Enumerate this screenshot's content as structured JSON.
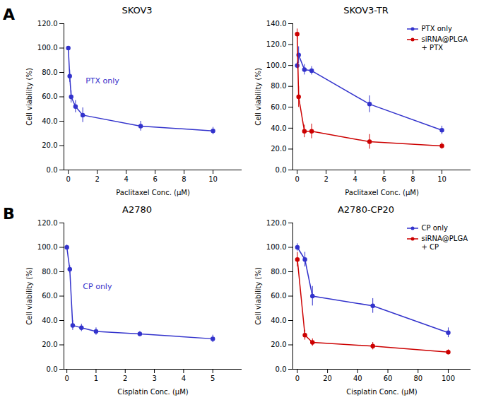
{
  "chart_data": [
    {
      "type": "line",
      "panel_label": "A",
      "title": "SKOV3",
      "xlabel": "Paclitaxel Conc. (μM)",
      "ylabel": "Cell viability (%)",
      "xlim": [
        -0.3,
        12
      ],
      "ylim": [
        0.0,
        120.0
      ],
      "xticks": [
        0,
        2,
        4,
        6,
        8,
        10
      ],
      "yticks": [
        {
          "value": 0,
          "label": "0.0"
        },
        {
          "value": 20,
          "label": "20.0"
        },
        {
          "value": 40,
          "label": "40.0"
        },
        {
          "value": 60,
          "label": "60.0"
        },
        {
          "value": 80,
          "label": "80.0"
        },
        {
          "value": 100,
          "label": "100.0"
        },
        {
          "value": 120,
          "label": "120.0"
        }
      ],
      "grid": false,
      "marker": "circle",
      "x": [
        0,
        0.1,
        0.2,
        0.5,
        1.0,
        5.0,
        10.0
      ],
      "series": [
        {
          "name": "PTX only",
          "color": "#3333cc",
          "values": [
            100,
            77,
            60,
            52,
            45,
            36,
            32
          ],
          "yerr": [
            1,
            5,
            5,
            5,
            6,
            4,
            3
          ]
        }
      ],
      "annotations": [
        {
          "text": "PTX only",
          "x": 1.2,
          "y": 73
        }
      ]
    },
    {
      "type": "line",
      "title": "SKOV3-TR",
      "xlabel": "Paclitaxel Conc. (μM)",
      "ylabel": "Cell viability (%)",
      "xlim": [
        -0.3,
        12
      ],
      "ylim": [
        0.0,
        140.0
      ],
      "xticks": [
        0,
        2,
        4,
        6,
        8,
        10
      ],
      "yticks": [
        {
          "value": 0,
          "label": "0.0"
        },
        {
          "value": 20,
          "label": "20.0"
        },
        {
          "value": 40,
          "label": "40.0"
        },
        {
          "value": 60,
          "label": "60.0"
        },
        {
          "value": 80,
          "label": "80.0"
        },
        {
          "value": 100,
          "label": "100.0"
        },
        {
          "value": 120,
          "label": "120.0"
        },
        {
          "value": 140,
          "label": "140.0"
        }
      ],
      "grid": false,
      "marker": "circle",
      "legend": "upper right",
      "x": [
        0,
        0.1,
        0.5,
        1.0,
        5.0,
        10.0
      ],
      "series": [
        {
          "name": "PTX only",
          "color": "#3333cc",
          "values": [
            100,
            110,
            96,
            95,
            63,
            38
          ],
          "yerr": [
            3,
            8,
            5,
            4,
            8,
            4
          ]
        },
        {
          "name": "siRNA@PLGA\n+ PTX",
          "color": "#cc0000",
          "values": [
            130,
            70,
            37,
            37,
            27,
            23
          ],
          "yerr": [
            5,
            10,
            6,
            7,
            7,
            3
          ]
        }
      ]
    },
    {
      "type": "line",
      "panel_label": "B",
      "title": "A2780",
      "xlabel": "Cisplatin Conc. (μM)",
      "ylabel": "Cell viability (%)",
      "xlim": [
        -0.1,
        6
      ],
      "ylim": [
        0.0,
        120.0
      ],
      "xticks": [
        0,
        1,
        2,
        3,
        4,
        5
      ],
      "yticks": [
        {
          "value": 0,
          "label": "0.0"
        },
        {
          "value": 20,
          "label": "20.0"
        },
        {
          "value": 40,
          "label": "40.0"
        },
        {
          "value": 60,
          "label": "60.0"
        },
        {
          "value": 80,
          "label": "80.0"
        },
        {
          "value": 100,
          "label": "100.0"
        },
        {
          "value": 120,
          "label": "120.0"
        }
      ],
      "grid": false,
      "marker": "circle",
      "x": [
        0,
        0.1,
        0.2,
        0.5,
        1.0,
        2.5,
        5.0
      ],
      "series": [
        {
          "name": "CP only",
          "color": "#3333cc",
          "values": [
            100,
            82,
            36,
            34,
            31,
            29,
            25
          ],
          "yerr": [
            2,
            3,
            4,
            3,
            3,
            2,
            3
          ]
        }
      ],
      "annotations": [
        {
          "text": "CP only",
          "x": 0.55,
          "y": 68
        }
      ]
    },
    {
      "type": "line",
      "title": "A2780-CP20",
      "xlabel": "Cisplatin Conc. (μM)",
      "ylabel": "Cell viability (%)",
      "xlim": [
        -3,
        115
      ],
      "ylim": [
        0.0,
        120.0
      ],
      "xticks": [
        0,
        20,
        40,
        60,
        80,
        100
      ],
      "yticks": [
        {
          "value": 0,
          "label": "0.0"
        },
        {
          "value": 20,
          "label": "20.0"
        },
        {
          "value": 40,
          "label": "40.0"
        },
        {
          "value": 60,
          "label": "60.0"
        },
        {
          "value": 80,
          "label": "80.0"
        },
        {
          "value": 100,
          "label": "100.0"
        },
        {
          "value": 120,
          "label": "120.0"
        }
      ],
      "grid": false,
      "marker": "circle",
      "legend": "upper right",
      "x": [
        0,
        5,
        10,
        50,
        100
      ],
      "series": [
        {
          "name": "CP only",
          "color": "#3333cc",
          "values": [
            100,
            90,
            60,
            52,
            30
          ],
          "yerr": [
            3,
            6,
            8,
            6,
            4
          ]
        },
        {
          "name": "siRNA@PLGA\n+ CP",
          "color": "#cc0000",
          "values": [
            90,
            28,
            22,
            19,
            14
          ],
          "yerr": [
            6,
            4,
            3,
            3,
            2
          ]
        }
      ]
    }
  ]
}
